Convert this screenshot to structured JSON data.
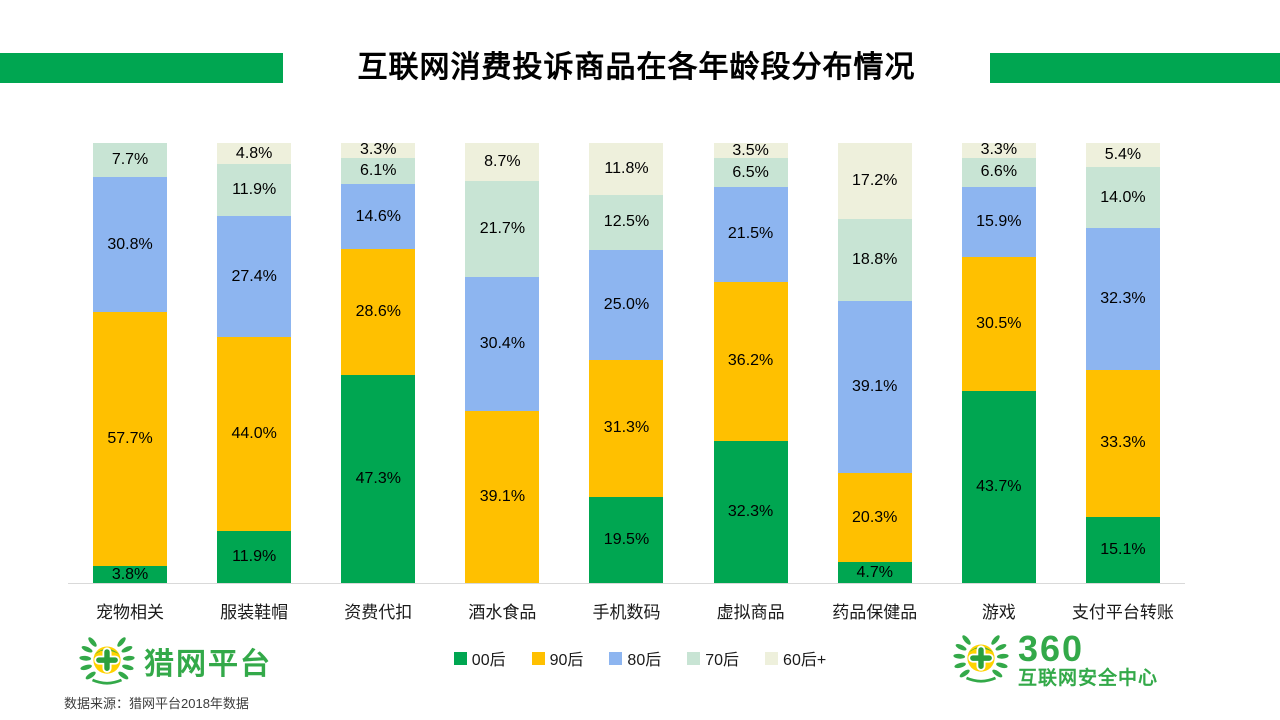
{
  "header": {
    "title": "互联网消费投诉商品在各年龄段分布情况"
  },
  "chart_data": {
    "type": "bar",
    "variant": "stacked-percentage-column",
    "title": "互联网消费投诉商品在各年龄段分布情况",
    "unit": "%",
    "categories": [
      "宠物相关",
      "服装鞋帽",
      "资费代扣",
      "酒水食品",
      "手机数码",
      "虚拟商品",
      "药品保健品",
      "游戏",
      "支付平台转账"
    ],
    "series": [
      {
        "name": "00后",
        "color": "#00a651",
        "values": [
          3.8,
          11.9,
          47.3,
          0,
          19.5,
          32.3,
          4.7,
          43.7,
          15.1
        ]
      },
      {
        "name": "90后",
        "color": "#ffc000",
        "values": [
          57.7,
          44.0,
          28.6,
          39.1,
          31.3,
          36.2,
          20.3,
          30.5,
          33.3
        ]
      },
      {
        "name": "80后",
        "color": "#8db5f0",
        "values": [
          30.8,
          27.4,
          14.6,
          30.4,
          25.0,
          21.5,
          39.1,
          15.9,
          32.3
        ]
      },
      {
        "name": "70后",
        "color": "#c8e4d4",
        "values": [
          7.7,
          11.9,
          6.1,
          21.7,
          12.5,
          6.5,
          18.8,
          6.6,
          14.0
        ]
      },
      {
        "name": "60后+",
        "color": "#eef0dc",
        "values": [
          0,
          4.8,
          3.3,
          8.7,
          11.8,
          3.5,
          17.2,
          3.3,
          5.4
        ]
      }
    ],
    "value_label_format": "{value}%",
    "ylim": [
      0,
      100
    ],
    "grid": false,
    "legend_position": "bottom"
  },
  "footer": {
    "source": "数据来源：猎网平台2018年数据",
    "left_logo": {
      "text": "猎网平台"
    },
    "right_logo": {
      "brand": "360",
      "text": "互联网安全中心"
    }
  },
  "colors": {
    "title_bar_green": "#00a651",
    "logo_green": "#33a949",
    "baseline_gray": "#d9d9d9"
  }
}
